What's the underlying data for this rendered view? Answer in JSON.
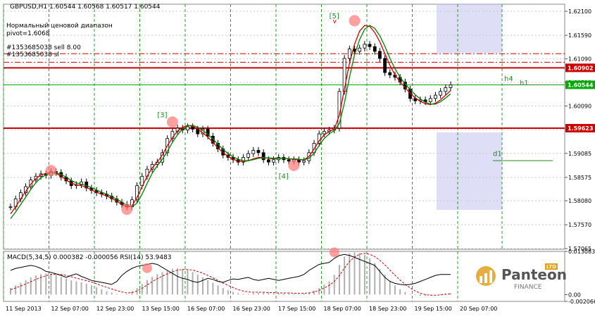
{
  "window": {
    "title": "GBPUSD,H1 1.60544 1.60568 1.60517 1.60544",
    "indicator_lines": [
      "Нормальный ценовой диапазон",
      "pivot=1.6068",
      "#1353685038 sell 8.00",
      "#1353685038 sl"
    ]
  },
  "chart_data": {
    "type": "line",
    "symbol": "GBPUSD",
    "timeframe": "H1",
    "ohlc": {
      "open": 1.60544,
      "high": 1.60568,
      "low": 1.60517,
      "close": 1.60544
    },
    "price_axis": {
      "ylim": [
        1.5705,
        1.6225
      ],
      "ticks": [
        "1.62100",
        "1.61590",
        "1.61090",
        "1.60590",
        "1.60090",
        "1.59590",
        "1.59085",
        "1.58575",
        "1.58080",
        "1.57570",
        "1.57065"
      ]
    },
    "time_axis": {
      "ticks": [
        "11 Sep 2013",
        "12 Sep 07:00",
        "12 Sep 23:00",
        "13 Sep 15:00",
        "16 Sep 07:00",
        "16 Sep 23:00",
        "17 Sep 15:00",
        "18 Sep 07:00",
        "18 Sep 23:00",
        "19 Sep 15:00",
        "20 Sep 07:00"
      ]
    },
    "price_series": [
      {
        "name": "Close",
        "values": [
          1.5795,
          1.5812,
          1.5825,
          1.5838,
          1.5852,
          1.586,
          1.5865,
          1.5862,
          1.587,
          1.5868,
          1.5858,
          1.585,
          1.584,
          1.5842,
          1.5848,
          1.5835,
          1.583,
          1.5825,
          1.5822,
          1.5818,
          1.5812,
          1.5805,
          1.58,
          1.5795,
          1.581,
          1.584,
          1.586,
          1.5875,
          1.5885,
          1.589,
          1.591,
          1.594,
          1.5955,
          1.5962,
          1.5958,
          1.5965,
          1.596,
          1.595,
          1.596,
          1.5945,
          1.593,
          1.5918,
          1.5905,
          1.59,
          1.5895,
          1.589,
          1.59,
          1.5908,
          1.5915,
          1.591,
          1.5895,
          1.589,
          1.5895,
          1.59,
          1.5895,
          1.5892,
          1.5895,
          1.589,
          1.5893,
          1.591,
          1.593,
          1.595,
          1.5955,
          1.5958,
          1.5962,
          1.604,
          1.611,
          1.613,
          1.6125,
          1.6132,
          1.614,
          1.6135,
          1.6125,
          1.611,
          1.608,
          1.6075,
          1.607,
          1.606,
          1.6045,
          1.6025,
          1.602,
          1.6022,
          1.6018,
          1.6025,
          1.6032,
          1.604,
          1.6048,
          1.6054
        ]
      },
      {
        "name": "MA fast",
        "values": [
          1.578,
          1.5795,
          1.5812,
          1.5828,
          1.5843,
          1.5855,
          1.5863,
          1.5866,
          1.5868,
          1.5866,
          1.586,
          1.5852,
          1.5845,
          1.5842,
          1.584,
          1.5836,
          1.5831,
          1.5826,
          1.5822,
          1.5818,
          1.5813,
          1.5807,
          1.58,
          1.5794,
          1.5797,
          1.5815,
          1.5838,
          1.586,
          1.5878,
          1.589,
          1.5905,
          1.5925,
          1.5942,
          1.5956,
          1.5964,
          1.5968,
          1.5966,
          1.596,
          1.5952,
          1.5943,
          1.5932,
          1.592,
          1.591,
          1.5902,
          1.5896,
          1.5892,
          1.5891,
          1.5893,
          1.5897,
          1.59,
          1.59,
          1.5898,
          1.5897,
          1.5898,
          1.5898,
          1.5897,
          1.5896,
          1.5895,
          1.5895,
          1.5902,
          1.5918,
          1.5935,
          1.5948,
          1.5955,
          1.596,
          1.599,
          1.6045,
          1.61,
          1.614,
          1.6168,
          1.618,
          1.6178,
          1.6165,
          1.6145,
          1.612,
          1.6095,
          1.6075,
          1.606,
          1.6048,
          1.6036,
          1.6026,
          1.6019,
          1.6014,
          1.6012,
          1.6015,
          1.6022,
          1.6032,
          1.6042
        ]
      },
      {
        "name": "MA slow",
        "values": [
          1.577,
          1.5784,
          1.58,
          1.5816,
          1.5832,
          1.5846,
          1.5857,
          1.5863,
          1.5867,
          1.5867,
          1.5864,
          1.5858,
          1.5851,
          1.5846,
          1.5843,
          1.584,
          1.5836,
          1.5831,
          1.5826,
          1.5822,
          1.5817,
          1.5811,
          1.5805,
          1.5798,
          1.5795,
          1.5803,
          1.5822,
          1.5845,
          1.5866,
          1.5882,
          1.5896,
          1.5913,
          1.5932,
          1.5948,
          1.596,
          1.5967,
          1.5968,
          1.5964,
          1.5957,
          1.5949,
          1.5939,
          1.5928,
          1.5917,
          1.5908,
          1.5901,
          1.5896,
          1.5893,
          1.5893,
          1.5895,
          1.5898,
          1.5899,
          1.5899,
          1.5898,
          1.5898,
          1.5898,
          1.5897,
          1.5897,
          1.5896,
          1.5895,
          1.5898,
          1.5909,
          1.5925,
          1.594,
          1.595,
          1.5957,
          1.5972,
          1.6015,
          1.607,
          1.6118,
          1.615,
          1.6172,
          1.618,
          1.6174,
          1.6158,
          1.6136,
          1.611,
          1.6088,
          1.607,
          1.6056,
          1.6044,
          1.6033,
          1.6024,
          1.6017,
          1.6013,
          1.6013,
          1.6018,
          1.6026,
          1.6035
        ]
      }
    ],
    "horizontal_lines": [
      {
        "price": 1.609,
        "color": "#cc0000",
        "label": "1.60902"
      },
      {
        "price": 1.5962,
        "color": "#cc0000",
        "label": "1.59623"
      },
      {
        "price": 1.6054,
        "color": "#00aa00",
        "label": "1.60544"
      }
    ],
    "wave_labels": [
      "[3]",
      "[4]",
      "[5]"
    ],
    "level_labels": [
      "h4",
      "h1",
      "d1"
    ],
    "marker_v": "v",
    "macd": {
      "label": "MACD(5,34,5) 0.000382 -0.000056",
      "ticks": [
        "0.013083",
        "0.00",
        "-0.002066"
      ],
      "histogram": [
        0.002,
        0.0028,
        0.0036,
        0.0044,
        0.0052,
        0.0058,
        0.0062,
        0.0064,
        0.0064,
        0.006,
        0.0054,
        0.0048,
        0.0043,
        0.004,
        0.0037,
        0.0033,
        0.0028,
        0.0022,
        0.0016,
        0.001,
        0.0006,
        0.0002,
        0.0,
        0.0002,
        0.001,
        0.002,
        0.0032,
        0.0044,
        0.0054,
        0.0062,
        0.0068,
        0.0074,
        0.0078,
        0.008,
        0.0078,
        0.0074,
        0.0068,
        0.006,
        0.0052,
        0.0044,
        0.0036,
        0.0028,
        0.002,
        0.0013,
        0.0008,
        0.0004,
        0.0002,
        0.0002,
        0.0004,
        0.0006,
        0.0006,
        0.0005,
        0.0004,
        0.0004,
        0.0004,
        0.0003,
        0.0003,
        0.0002,
        0.0003,
        0.0006,
        0.0012,
        0.002,
        0.003,
        0.004,
        0.006,
        0.009,
        0.0115,
        0.0125,
        0.0128,
        0.0126,
        0.012,
        0.011,
        0.0095,
        0.0078,
        0.006,
        0.0042,
        0.0028,
        0.0016,
        0.0008,
        0.0002,
        -0.0002,
        -0.0004,
        -0.0004,
        -0.0002,
        0.0,
        0.0002,
        0.0003,
        0.0004
      ],
      "signal": [
        0.0015,
        0.002,
        0.0026,
        0.0032,
        0.0039,
        0.0046,
        0.0052,
        0.0057,
        0.0061,
        0.0062,
        0.0061,
        0.0058,
        0.0054,
        0.005,
        0.0046,
        0.0042,
        0.0038,
        0.0033,
        0.0027,
        0.0022,
        0.0017,
        0.0012,
        0.0008,
        0.0005,
        0.0006,
        0.0011,
        0.0019,
        0.0029,
        0.0039,
        0.0048,
        0.0056,
        0.0063,
        0.0069,
        0.0074,
        0.0076,
        0.0076,
        0.0074,
        0.007,
        0.0065,
        0.0058,
        0.0051,
        0.0043,
        0.0035,
        0.0028,
        0.0021,
        0.0015,
        0.0011,
        0.0008,
        0.0007,
        0.0007,
        0.0007,
        0.0006,
        0.0006,
        0.0005,
        0.0005,
        0.0005,
        0.0004,
        0.0004,
        0.0004,
        0.0005,
        0.0008,
        0.0013,
        0.002,
        0.0028,
        0.004,
        0.0058,
        0.008,
        0.01,
        0.0114,
        0.0122,
        0.0125,
        0.0122,
        0.0115,
        0.0104,
        0.009,
        0.0074,
        0.0058,
        0.0044,
        0.0031,
        0.002,
        0.0011,
        0.0004,
        0.0,
        -0.0002,
        -0.0002,
        -0.0001,
        0.0001,
        0.0002
      ]
    },
    "rsi": {
      "label": "RSI(14) 53.9483",
      "values": [
        62,
        66,
        68,
        70,
        72,
        70,
        66,
        60,
        58,
        55,
        52,
        48,
        52,
        55,
        50,
        46,
        42,
        40,
        38,
        36,
        34,
        40,
        52,
        60,
        66,
        70,
        72,
        74,
        76,
        74,
        68,
        62,
        56,
        50,
        46,
        44,
        40,
        38,
        42,
        46,
        44,
        40,
        38,
        42,
        45,
        44,
        46,
        48,
        44,
        42,
        44,
        46,
        44,
        42,
        44,
        46,
        48,
        50,
        54,
        62,
        68,
        74,
        76,
        78,
        86,
        92,
        94,
        92,
        88,
        84,
        80,
        76,
        72,
        60,
        48,
        40,
        36,
        34,
        33,
        34,
        36,
        40,
        44,
        48,
        52,
        54,
        54,
        54
      ]
    }
  },
  "watermark": {
    "brand": "Panteon",
    "tagline": "FINANCE",
    "badge": "LTD"
  }
}
